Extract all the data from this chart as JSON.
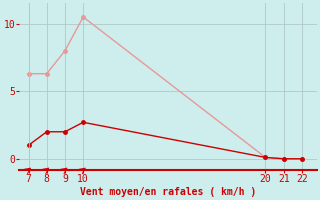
{
  "xlabel": "Vent moyen/en rafales ( km/h )",
  "background_color": "#cdeeed",
  "grid_color": "#b0c8c8",
  "x_ticks": [
    7,
    8,
    9,
    10,
    20,
    21,
    22
  ],
  "x_moyen": [
    7,
    8,
    9,
    10,
    20,
    21,
    22
  ],
  "y_moyen": [
    1.0,
    2.0,
    2.0,
    2.7,
    0.1,
    0.0,
    0.0
  ],
  "x_rafales": [
    7,
    8,
    9,
    10,
    20,
    21,
    22
  ],
  "y_rafales": [
    6.3,
    6.3,
    8.0,
    10.5,
    0.1,
    0.0,
    0.0
  ],
  "color_moyen": "#cc0000",
  "color_rafales": "#e89898",
  "ylim": [
    -0.8,
    11.5
  ],
  "xlim": [
    6.5,
    22.8
  ],
  "yticks": [
    0,
    5,
    10
  ],
  "marker_size": 2.5,
  "line_width": 1.0,
  "tick_fontsize": 7,
  "xlabel_fontsize": 7
}
